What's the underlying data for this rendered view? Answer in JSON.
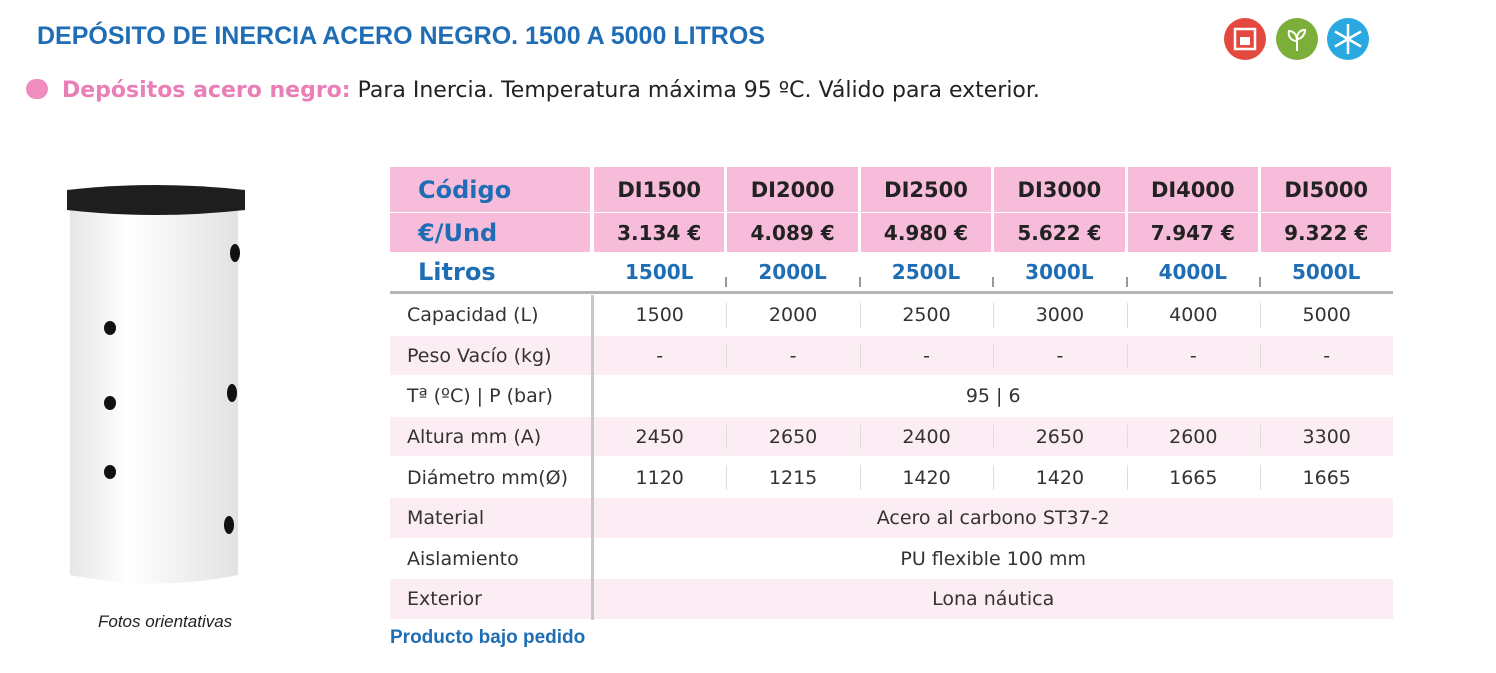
{
  "header": {
    "title": "DEPÓSITO DE INERCIA ACERO NEGRO. 1500 A 5000 LITROS",
    "subtitle_label": "Depósitos acero negro:",
    "subtitle_text": "Para Inercia. Temperatura máxima 95 ºC. Válido para exterior."
  },
  "image": {
    "caption": "Fotos orientativas"
  },
  "table": {
    "header_rows": [
      {
        "label": "Código",
        "values": [
          "DI1500",
          "DI2000",
          "DI2500",
          "DI3000",
          "DI4000",
          "DI5000"
        ]
      },
      {
        "label": "€/Und",
        "values": [
          "3.134 €",
          "4.089 €",
          "4.980 €",
          "5.622  €",
          "7.947 €",
          "9.322 €"
        ]
      },
      {
        "label": "Litros",
        "values": [
          "1500L",
          "2000L",
          "2500L",
          "3000L",
          "4000L",
          "5000L"
        ]
      }
    ],
    "rows": [
      {
        "label": "Capacidad (L)",
        "values": [
          "1500",
          "2000",
          "2500",
          "3000",
          "4000",
          "5000"
        ]
      },
      {
        "label": "Peso Vacío (kg)",
        "values": [
          "-",
          "-",
          "-",
          "-",
          "-",
          "-"
        ]
      },
      {
        "label": "Tª  (ºC) | P (bar)",
        "value": "95 | 6"
      },
      {
        "label": "Altura mm (A)",
        "values": [
          "2450",
          "2650",
          "2400",
          "2650",
          "2600",
          "3300"
        ]
      },
      {
        "label": "Diámetro mm(Ø)",
        "values": [
          "1120",
          "1215",
          "1420",
          "1420",
          "1665",
          "1665"
        ]
      },
      {
        "label": "Material",
        "value": "Acero al carbono ST37-2"
      },
      {
        "label": "Aislamiento",
        "value": "PU flexible 100 mm"
      },
      {
        "label": "Exterior",
        "value": "Lona náutica"
      }
    ]
  },
  "footer": {
    "note": "Producto bajo pedido"
  }
}
